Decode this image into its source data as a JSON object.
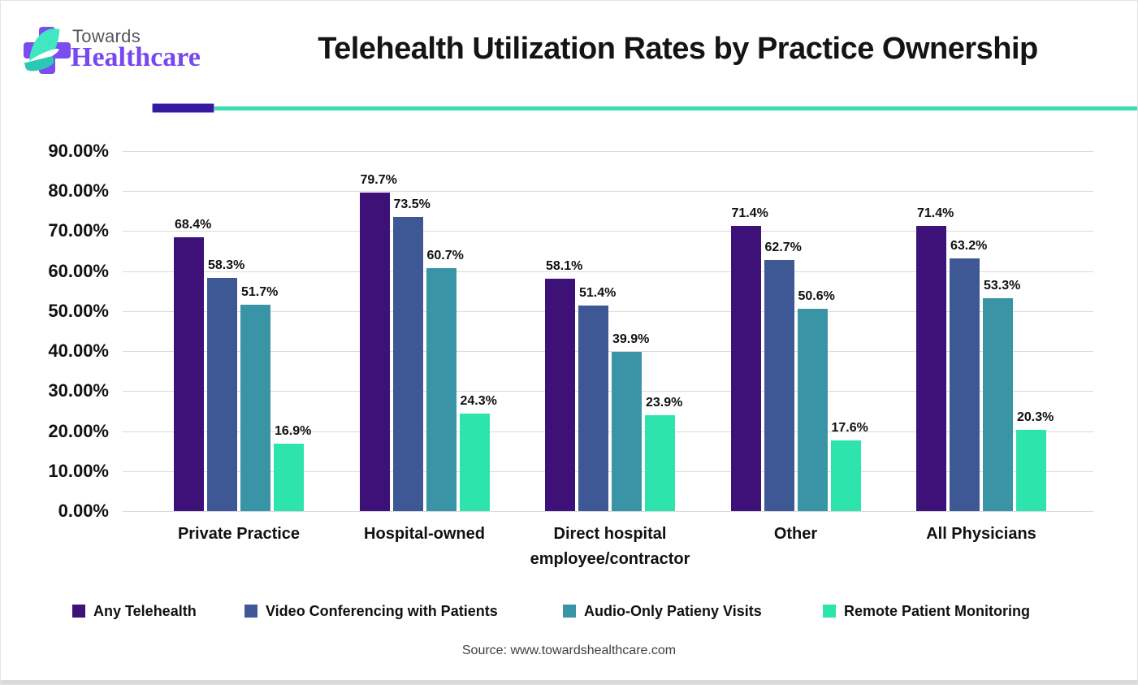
{
  "logo": {
    "towards": "Towards",
    "healthcare": "Healthcare"
  },
  "header": {
    "title": "Telehealth Utilization Rates by Practice Ownership"
  },
  "brand": {
    "accent_purple": "#7B4DF1",
    "accent_mint": "#3FE8C1",
    "divider_purple": "#341B9E",
    "divider_teal": "#3BDDB1"
  },
  "chart_data": {
    "type": "bar",
    "title": "Telehealth Utilization Rates by Practice Ownership",
    "categories": [
      "Private Practice",
      "Hospital-owned",
      "Direct hospital employee/contractor",
      "Other",
      "All Physicians"
    ],
    "series": [
      {
        "name": "Any Telehealth",
        "color": "#3D1178",
        "values": [
          68.4,
          79.7,
          58.1,
          71.4,
          71.4
        ],
        "labels": [
          "68.4%",
          "79.7%",
          "58.1%",
          "71.4%",
          "71.4%"
        ]
      },
      {
        "name": "Video Conferencing with Patients",
        "color": "#3E5795",
        "values": [
          58.3,
          73.5,
          51.4,
          62.7,
          63.2
        ],
        "labels": [
          "58.3%",
          "73.5%",
          "51.4%",
          "62.7%",
          "63.2%"
        ]
      },
      {
        "name": "Audio-Only Patieny Visits",
        "color": "#3995A5",
        "values": [
          51.7,
          60.7,
          39.9,
          50.6,
          53.3
        ],
        "labels": [
          "51.7%",
          "60.7%",
          "39.9%",
          "50.6%",
          "53.3%"
        ]
      },
      {
        "name": "Remote Patient Monitoring",
        "color": "#2DE4AD",
        "values": [
          16.9,
          24.3,
          23.9,
          17.6,
          20.3
        ],
        "labels": [
          "16.9%",
          "24.3%",
          "23.9%",
          "17.6%",
          "20.3%"
        ]
      }
    ],
    "xlabel": "",
    "ylabel": "",
    "ylim": [
      0,
      90
    ],
    "ytick_step": 10,
    "ytick_labels": [
      "0.00%",
      "10.00%",
      "20.00%",
      "30.00%",
      "40.00%",
      "50.00%",
      "60.00%",
      "70.00%",
      "80.00%",
      "90.00%"
    ],
    "grid": true,
    "legend_position": "bottom"
  },
  "footer": {
    "source": "Source: www.towardshealthcare.com"
  }
}
